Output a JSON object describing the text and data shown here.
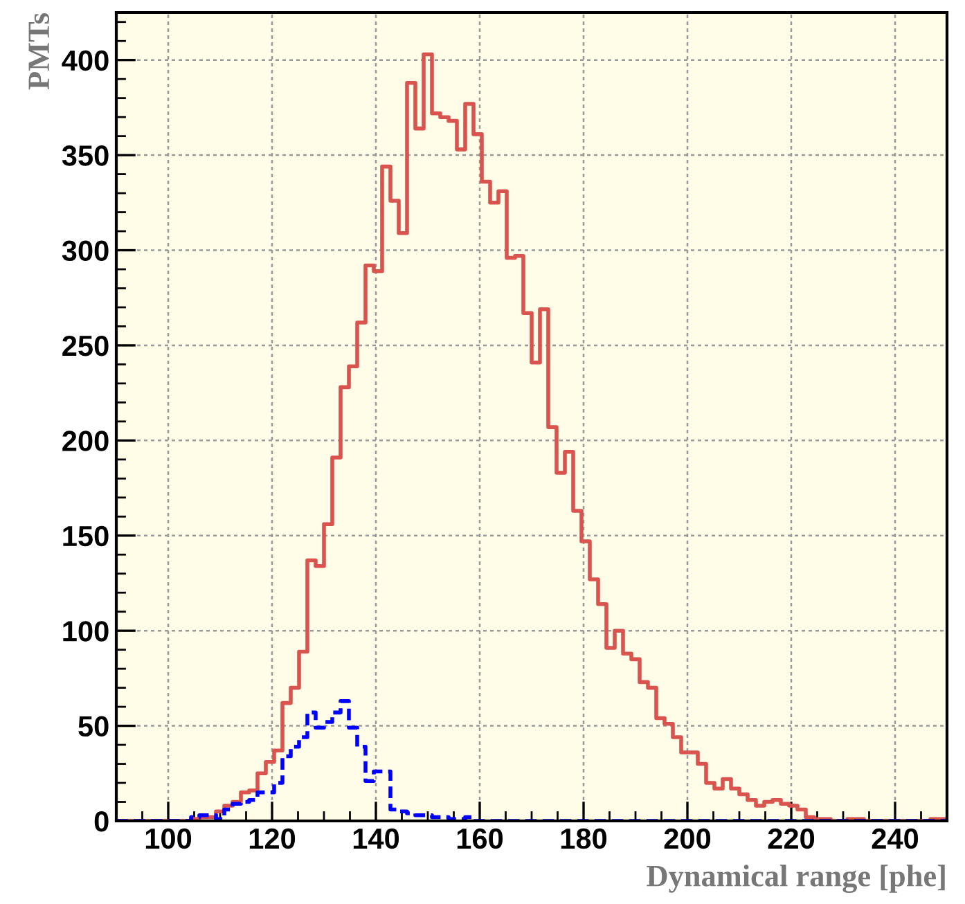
{
  "chart_data": {
    "type": "histogram",
    "xlabel": "Dynamical range [phe]",
    "ylabel": "PMTs",
    "bins": [
      90.0,
      91.6,
      93.2,
      94.8,
      96.4,
      98.0,
      99.6,
      101.2,
      102.8,
      104.4,
      106.0,
      107.6,
      109.2,
      110.8,
      112.4,
      114.0,
      115.6,
      117.2,
      118.8,
      120.4,
      122.0,
      123.6,
      125.2,
      126.8,
      128.4,
      130.0,
      131.6,
      133.2,
      134.8,
      136.4,
      138.0,
      139.6,
      141.2,
      142.8,
      144.4,
      146.0,
      147.6,
      149.2,
      150.8,
      152.4,
      154.0,
      155.6,
      157.2,
      158.8,
      160.4,
      162.0,
      163.6,
      165.2,
      166.8,
      168.4,
      170.0,
      171.6,
      173.2,
      174.8,
      176.4,
      178.0,
      179.6,
      181.2,
      182.8,
      184.4,
      186.0,
      187.6,
      189.2,
      190.8,
      192.4,
      194.0,
      195.6,
      197.2,
      198.8,
      200.4,
      202.0,
      203.6,
      205.2,
      206.8,
      208.4,
      210.0,
      211.6,
      213.2,
      214.8,
      216.4,
      218.0,
      219.6,
      221.2,
      222.8,
      224.4,
      226.0,
      227.6,
      229.2,
      230.8,
      232.4,
      234.0,
      235.6,
      237.2,
      238.8,
      240.4,
      242.0,
      243.6,
      245.2,
      246.8,
      248.4,
      250.0
    ],
    "series": [
      {
        "color": "#d9534f",
        "line_style": "solid",
        "values": [
          0,
          0,
          0,
          0,
          0,
          0,
          0,
          0,
          0,
          1,
          2,
          2,
          5,
          8,
          10,
          15,
          16,
          25,
          31,
          37,
          62,
          70,
          89,
          137,
          134,
          156,
          191,
          228,
          239,
          262,
          292,
          289,
          344,
          326,
          309,
          388,
          364,
          403,
          372,
          370,
          368,
          353,
          377,
          361,
          336,
          325,
          331,
          296,
          297,
          267,
          241,
          269,
          207,
          183,
          194,
          163,
          147,
          127,
          114,
          91,
          100,
          88,
          85,
          73,
          70,
          54,
          51,
          44,
          36,
          36,
          30,
          20,
          17,
          22,
          17,
          14,
          11,
          8,
          10,
          11,
          9,
          8,
          6,
          2,
          1,
          1,
          0,
          0,
          1,
          1,
          0,
          0,
          0,
          0,
          0,
          0,
          0,
          0,
          1,
          1
        ]
      },
      {
        "color": "#0000ff",
        "line_style": "dashed",
        "values": [
          0,
          0,
          0,
          0,
          0,
          0,
          0,
          0,
          0,
          2,
          3,
          3,
          1,
          6,
          9,
          10,
          11,
          15,
          15,
          20,
          34,
          39,
          44,
          57,
          49,
          52,
          57,
          63,
          49,
          39,
          21,
          26,
          26,
          6,
          5,
          4,
          3,
          3,
          2,
          2,
          1,
          1,
          2,
          0,
          0,
          0,
          0,
          0,
          0,
          0,
          0,
          0,
          0,
          0,
          0,
          0,
          0,
          0,
          0,
          0,
          0,
          0,
          0,
          0,
          0,
          0,
          0,
          0,
          0,
          0,
          0,
          0,
          0,
          0,
          0,
          0,
          0,
          0,
          0,
          0,
          0,
          0,
          0,
          0,
          0,
          0,
          0,
          0,
          0,
          0,
          0,
          0,
          0,
          0,
          0,
          0,
          0,
          0,
          0,
          0
        ]
      }
    ],
    "xlim": [
      90,
      250
    ],
    "ylim": [
      0,
      425
    ],
    "xticks": [
      100,
      120,
      140,
      160,
      180,
      200,
      220,
      240
    ],
    "yticks": [
      0,
      50,
      100,
      150,
      200,
      250,
      300,
      350,
      400
    ],
    "grid": true
  }
}
